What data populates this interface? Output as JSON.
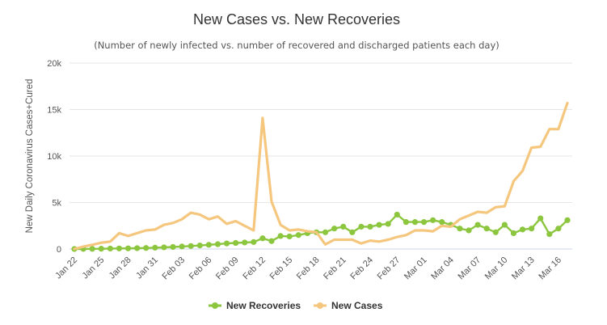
{
  "chart_data": {
    "type": "line",
    "title": "New Cases vs. New Recoveries",
    "subtitle": "(Number of newly infected vs. number of recovered and discharged patients each day)",
    "ylabel": "New Daily Coronavirus Cases+Cured",
    "ylim": [
      0,
      20000
    ],
    "yticks": [
      0,
      5000,
      10000,
      15000,
      20000
    ],
    "ytick_labels": [
      "0",
      "5k",
      "10k",
      "15k",
      "20k"
    ],
    "grid": true,
    "legend_position": "bottom",
    "x": [
      "Jan 22",
      "Jan 23",
      "Jan 24",
      "Jan 25",
      "Jan 26",
      "Jan 27",
      "Jan 28",
      "Jan 29",
      "Jan 30",
      "Jan 31",
      "Feb 01",
      "Feb 02",
      "Feb 03",
      "Feb 04",
      "Feb 05",
      "Feb 06",
      "Feb 07",
      "Feb 08",
      "Feb 09",
      "Feb 10",
      "Feb 11",
      "Feb 12",
      "Feb 13",
      "Feb 14",
      "Feb 15",
      "Feb 16",
      "Feb 17",
      "Feb 18",
      "Feb 19",
      "Feb 20",
      "Feb 21",
      "Feb 22",
      "Feb 23",
      "Feb 24",
      "Feb 25",
      "Feb 26",
      "Feb 27",
      "Feb 28",
      "Feb 29",
      "Mar 01",
      "Mar 02",
      "Mar 03",
      "Mar 04",
      "Mar 05",
      "Mar 06",
      "Mar 07",
      "Mar 08",
      "Mar 09",
      "Mar 10",
      "Mar 11",
      "Mar 12",
      "Mar 13",
      "Mar 14",
      "Mar 15",
      "Mar 16",
      "Mar 17"
    ],
    "xtick_labels": [
      "Jan 22",
      "Jan 25",
      "Jan 28",
      "Jan 31",
      "Feb 03",
      "Feb 06",
      "Feb 09",
      "Feb 12",
      "Feb 15",
      "Feb 18",
      "Feb 21",
      "Feb 24",
      "Feb 27",
      "Mar 01",
      "Mar 04",
      "Mar 07",
      "Mar 10",
      "Mar 13",
      "Mar 16"
    ],
    "series": [
      {
        "name": "New Recoveries",
        "color": "#8cc63f",
        "values": [
          0,
          10,
          20,
          30,
          50,
          60,
          70,
          90,
          110,
          140,
          180,
          220,
          270,
          320,
          380,
          450,
          520,
          600,
          650,
          700,
          750,
          1150,
          850,
          1400,
          1350,
          1500,
          1700,
          1800,
          1800,
          2200,
          2400,
          1800,
          2400,
          2400,
          2600,
          2700,
          3700,
          2900,
          2900,
          2900,
          3100,
          2900,
          2600,
          2200,
          2000,
          2600,
          2200,
          1800,
          2600,
          1700,
          2100,
          2200,
          3300,
          1600,
          2200,
          3100
        ]
      },
      {
        "name": "New Cases",
        "color": "#f5c77e",
        "values": [
          0,
          250,
          450,
          680,
          800,
          1700,
          1400,
          1700,
          2000,
          2100,
          2600,
          2800,
          3200,
          3900,
          3700,
          3200,
          3500,
          2700,
          3000,
          2500,
          2000,
          14100,
          5100,
          2600,
          2000,
          2100,
          1900,
          1800,
          500,
          1000,
          1000,
          1000,
          600,
          900,
          800,
          1000,
          1300,
          1500,
          2000,
          2000,
          1900,
          2500,
          2400,
          3200,
          3600,
          4000,
          3900,
          4500,
          4600,
          7300,
          8400,
          10900,
          11000,
          12900,
          12900,
          15700
        ]
      }
    ]
  }
}
